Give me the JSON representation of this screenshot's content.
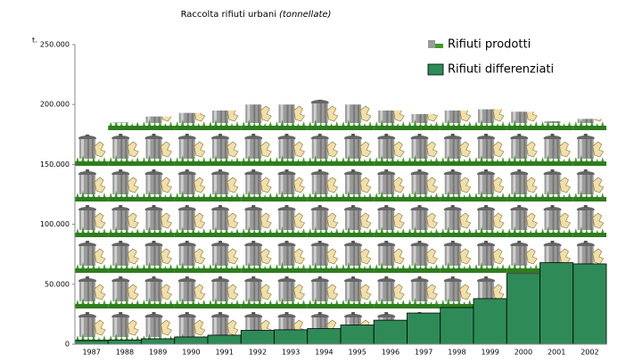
{
  "chart_data": {
    "type": "bar",
    "title": "Raccolta rifiuti urbani",
    "subtitle": "(tonnellate)",
    "y_label": "t.",
    "categories": [
      "1987",
      "1988",
      "1989",
      "1990",
      "1991",
      "1992",
      "1993",
      "1994",
      "1995",
      "1996",
      "1997",
      "1998",
      "1999",
      "2000",
      "2001",
      "2002"
    ],
    "series": [
      {
        "name": "Rifiuti prodotti",
        "color": "#9a9a9a",
        "pictogram": true,
        "values": [
          175000,
          185000,
          190000,
          193000,
          195000,
          200000,
          200000,
          204000,
          200000,
          195000,
          192000,
          195000,
          196000,
          194000,
          186000,
          188000
        ]
      },
      {
        "name": "Rifiuti differenziati",
        "color": "#2e8b57",
        "values": [
          3000,
          3500,
          4500,
          6000,
          7500,
          11500,
          12000,
          13000,
          16000,
          20000,
          26000,
          30500,
          38000,
          59000,
          68000,
          67000
        ]
      }
    ],
    "ylim": [
      0,
      250000
    ],
    "yticks": [
      0,
      {
        "value": 50000,
        "label": "50.000"
      },
      {
        "value": 100000,
        "label": "100.000"
      },
      {
        "value": 150000,
        "label": "150.000"
      },
      {
        "value": 200000,
        "label": "200.000"
      },
      {
        "value": 250000,
        "label": "250.000"
      }
    ],
    "grid": false
  }
}
